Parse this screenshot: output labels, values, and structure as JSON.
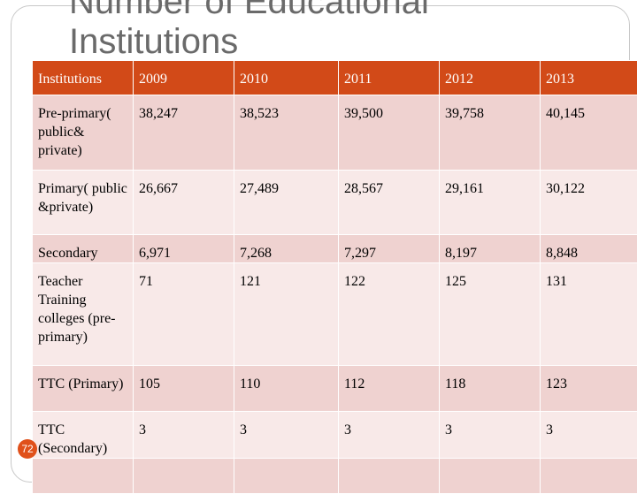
{
  "title": {
    "line1": "Number of Educational",
    "line2": "Institutions"
  },
  "table": {
    "headers": [
      "Institutions",
      "2009",
      "2010",
      "2011",
      "2012",
      "2013"
    ],
    "rows": [
      [
        "Pre-primary( public& private)",
        "38,247",
        "38,523",
        "39,500",
        "39,758",
        "40,145"
      ],
      [
        "Primary( public &private)",
        "26,667",
        "27,489",
        "28,567",
        "29,161",
        "30,122"
      ],
      [
        "Secondary",
        "6,971",
        "7,268",
        "7,297",
        "8,197",
        "8,848"
      ],
      [
        "Teacher Training colleges (pre-primary)",
        "71",
        "121",
        "122",
        "125",
        "131"
      ],
      [
        "TTC (Primary)",
        "105",
        "110",
        "112",
        "118",
        "123"
      ],
      [
        "TTC (Secondary)",
        "3",
        "3",
        "3",
        "3",
        "3"
      ],
      [
        "",
        "",
        "",
        "",
        "",
        ""
      ]
    ]
  },
  "page_number": "72",
  "colors": {
    "header_bg": "#d24a18",
    "row_dark": "#efd2d0",
    "row_light": "#f8e9e8",
    "page_badge": "#e0501a"
  }
}
